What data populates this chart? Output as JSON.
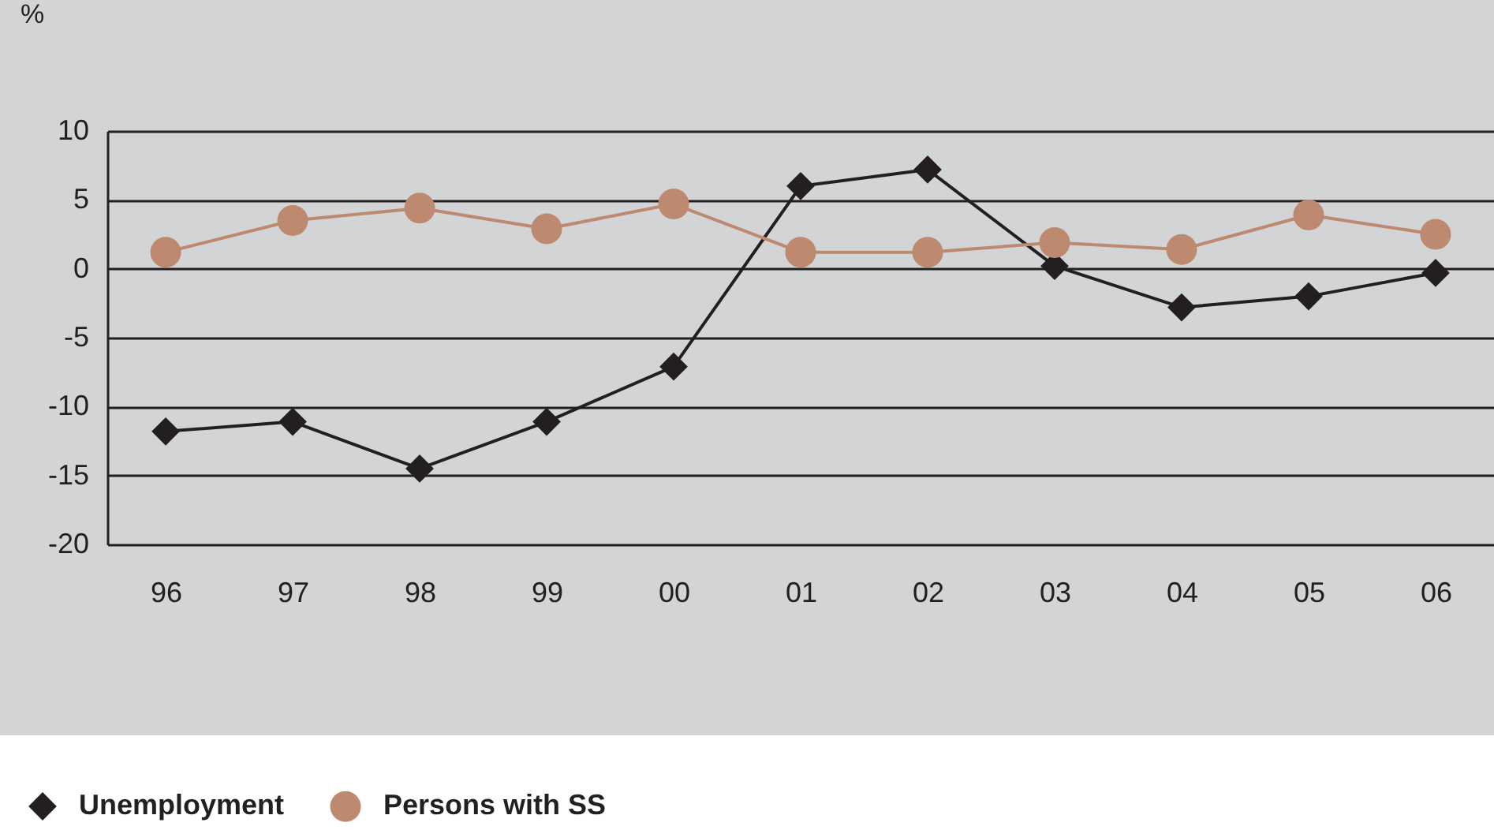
{
  "chart_data": {
    "type": "line",
    "ylabel": "%",
    "categories": [
      "96",
      "97",
      "98",
      "99",
      "00",
      "01",
      "02",
      "03",
      "04",
      "05",
      "06"
    ],
    "series": [
      {
        "name": "Unemployment",
        "color": "#231f20",
        "marker": "diamond",
        "values": [
          -11.8,
          -11.1,
          -14.5,
          -11.1,
          -7.1,
          6.0,
          7.2,
          0.2,
          -2.8,
          -2.0,
          -0.3
        ]
      },
      {
        "name": "Persons with SS",
        "color": "#bd8a70",
        "marker": "circle",
        "values": [
          1.2,
          3.5,
          4.4,
          2.9,
          4.7,
          1.2,
          1.2,
          1.9,
          1.4,
          3.9,
          2.5
        ]
      }
    ],
    "ylim": [
      -20,
      10
    ],
    "yticks": [
      -20,
      -15,
      -10,
      -5,
      0,
      5,
      10
    ],
    "grid": "y",
    "legend": "bottom left"
  }
}
